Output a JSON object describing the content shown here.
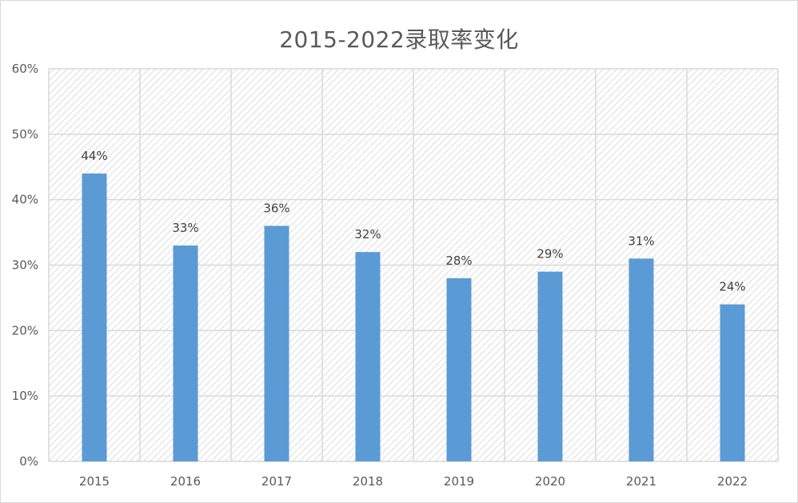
{
  "chart_data": {
    "type": "bar",
    "title": "2015-2022录取率变化",
    "xlabel": "",
    "ylabel": "",
    "categories": [
      "2015",
      "2016",
      "2017",
      "2018",
      "2019",
      "2020",
      "2021",
      "2022"
    ],
    "values": [
      44,
      33,
      36,
      32,
      28,
      29,
      31,
      24
    ],
    "data_labels": [
      "44%",
      "33%",
      "36%",
      "32%",
      "28%",
      "29%",
      "31%",
      "24%"
    ],
    "y_ticks": [
      0,
      10,
      20,
      30,
      40,
      50,
      60
    ],
    "y_tick_labels": [
      "0%",
      "10%",
      "20%",
      "30%",
      "40%",
      "50%",
      "60%"
    ],
    "ylim": [
      0,
      60
    ],
    "grid": true,
    "legend": "none",
    "colors": {
      "bar": "#5b9bd5",
      "grid": "#d9d9d9",
      "hatch": "#e3e3e3",
      "text": "#595959"
    }
  }
}
